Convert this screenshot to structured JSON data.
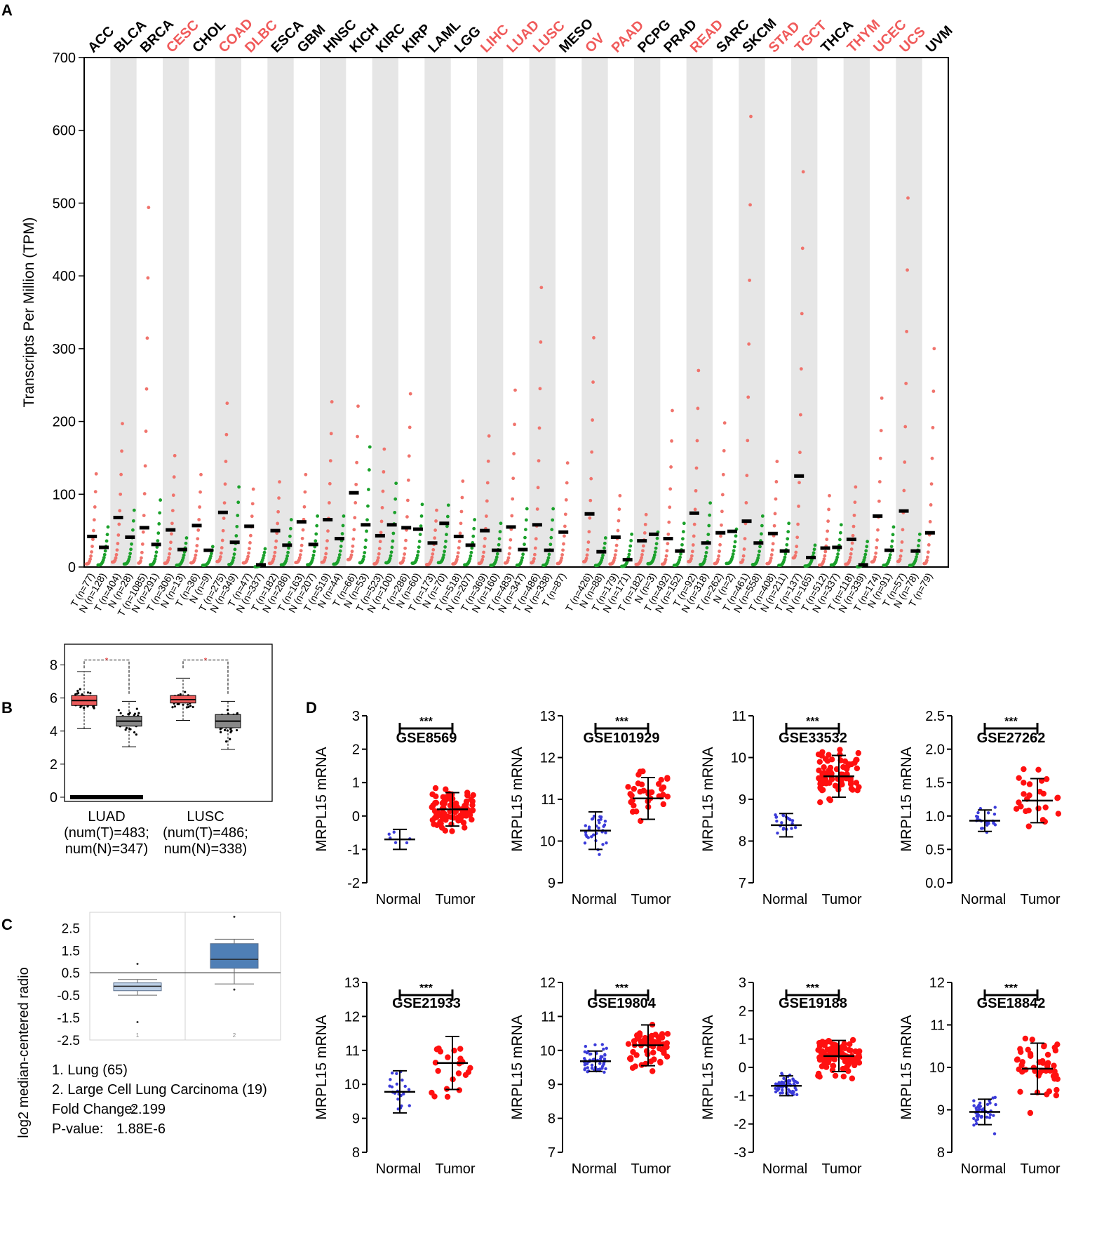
{
  "panel_labels": {
    "a": "A",
    "b": "B",
    "c": "C",
    "d": "D"
  },
  "colors": {
    "tumor": "#F0736C",
    "normal": "#1BA12B",
    "highlight": "#F05A5A",
    "black": "#000000",
    "band": "#E6E6E6",
    "blue_dot": "#3B3BD9",
    "red_dot": "#FF1010",
    "box_light": "#BCCFE6",
    "box_dark": "#4F7FB6"
  },
  "chart_data": [
    {
      "id": "A",
      "type": "scatter",
      "ylabel": "Transcripts Per Million (TPM)",
      "ylim": [
        0,
        700
      ],
      "yticks": [
        0,
        100,
        200,
        300,
        400,
        500,
        600,
        700
      ],
      "cancers": [
        {
          "name": "ACC",
          "highlight": false,
          "tumor": {
            "label": "T (n=77)",
            "median": 42,
            "max": 128
          },
          "normal": {
            "label": "N (n=128)",
            "median": 27,
            "max": 55
          }
        },
        {
          "name": "BLCA",
          "highlight": false,
          "tumor": {
            "label": "T (n=404)",
            "median": 68,
            "max": 197
          },
          "normal": {
            "label": "N (n=28)",
            "median": 41,
            "max": 78
          }
        },
        {
          "name": "BRCA",
          "highlight": false,
          "tumor": {
            "label": "T (n=1085)",
            "median": 54,
            "max": 494
          },
          "normal": {
            "label": "N (n=291)",
            "median": 31,
            "max": 92
          }
        },
        {
          "name": "CESC",
          "highlight": true,
          "tumor": {
            "label": "T (n=306)",
            "median": 51,
            "max": 153
          },
          "normal": {
            "label": "N (n=13)",
            "median": 24,
            "max": 40
          }
        },
        {
          "name": "CHOL",
          "highlight": false,
          "tumor": {
            "label": "T (n=36)",
            "median": 57,
            "max": 127
          },
          "normal": {
            "label": "N (n=9)",
            "median": 23,
            "max": 28
          }
        },
        {
          "name": "COAD",
          "highlight": true,
          "tumor": {
            "label": "T (n=275)",
            "median": 75,
            "max": 225
          },
          "normal": {
            "label": "N (n=349)",
            "median": 34,
            "max": 110
          }
        },
        {
          "name": "DLBC",
          "highlight": true,
          "tumor": {
            "label": "T (n=47)",
            "median": 56,
            "max": 107
          },
          "normal": {
            "label": "N (n=337)",
            "median": 3,
            "max": 25
          }
        },
        {
          "name": "ESCA",
          "highlight": false,
          "tumor": {
            "label": "T (n=182)",
            "median": 50,
            "max": 117
          },
          "normal": {
            "label": "N (n=286)",
            "median": 30,
            "max": 65
          }
        },
        {
          "name": "GBM",
          "highlight": false,
          "tumor": {
            "label": "T (n=163)",
            "median": 62,
            "max": 127
          },
          "normal": {
            "label": "N (n=207)",
            "median": 31,
            "max": 70
          }
        },
        {
          "name": "HNSC",
          "highlight": false,
          "tumor": {
            "label": "T (n=519)",
            "median": 65,
            "max": 227
          },
          "normal": {
            "label": "N (n=44)",
            "median": 39,
            "max": 70
          }
        },
        {
          "name": "KICH",
          "highlight": false,
          "tumor": {
            "label": "T (n=66)",
            "median": 102,
            "max": 221
          },
          "normal": {
            "label": "N (n=53)",
            "median": 58,
            "max": 165
          }
        },
        {
          "name": "KIRC",
          "highlight": false,
          "tumor": {
            "label": "T (n=523)",
            "median": 43,
            "max": 162
          },
          "normal": {
            "label": "N (n=100)",
            "median": 58,
            "max": 115
          }
        },
        {
          "name": "KIRP",
          "highlight": false,
          "tumor": {
            "label": "T (n=286)",
            "median": 54,
            "max": 238
          },
          "normal": {
            "label": "N (n=60)",
            "median": 52,
            "max": 86
          }
        },
        {
          "name": "LAML",
          "highlight": false,
          "tumor": {
            "label": "T (n=173)",
            "median": 33,
            "max": 78
          },
          "normal": {
            "label": "N (n=70)",
            "median": 60,
            "max": 85
          }
        },
        {
          "name": "LGG",
          "highlight": false,
          "tumor": {
            "label": "T (n=518)",
            "median": 42,
            "max": 118
          },
          "normal": {
            "label": "N (n=207)",
            "median": 30,
            "max": 65
          }
        },
        {
          "name": "LIHC",
          "highlight": true,
          "tumor": {
            "label": "T (n=369)",
            "median": 50,
            "max": 180
          },
          "normal": {
            "label": "N (n=160)",
            "median": 23,
            "max": 60
          }
        },
        {
          "name": "LUAD",
          "highlight": true,
          "tumor": {
            "label": "T (n=483)",
            "median": 55,
            "max": 243
          },
          "normal": {
            "label": "N (n=347)",
            "median": 24,
            "max": 80
          }
        },
        {
          "name": "LUSC",
          "highlight": true,
          "tumor": {
            "label": "T (n=486)",
            "median": 58,
            "max": 384
          },
          "normal": {
            "label": "N (n=338)",
            "median": 23,
            "max": 80
          }
        },
        {
          "name": "MESO",
          "highlight": false,
          "tumor": {
            "label": "T (n=87)",
            "median": 48,
            "max": 143
          },
          "normal": null
        },
        {
          "name": "OV",
          "highlight": true,
          "tumor": {
            "label": "T (n=426)",
            "median": 73,
            "max": 315
          },
          "normal": {
            "label": "N (n=88)",
            "median": 21,
            "max": 40
          }
        },
        {
          "name": "PAAD",
          "highlight": true,
          "tumor": {
            "label": "T (n=179)",
            "median": 41,
            "max": 98
          },
          "normal": {
            "label": "N (n=171)",
            "median": 10,
            "max": 45
          }
        },
        {
          "name": "PCPG",
          "highlight": false,
          "tumor": {
            "label": "T (n=182)",
            "median": 36,
            "max": 72
          },
          "normal": {
            "label": "N (n=3)",
            "median": 45,
            "max": 48
          }
        },
        {
          "name": "PRAD",
          "highlight": false,
          "tumor": {
            "label": "T (n=492)",
            "median": 39,
            "max": 215
          },
          "normal": {
            "label": "N (n=152)",
            "median": 22,
            "max": 60
          }
        },
        {
          "name": "READ",
          "highlight": true,
          "tumor": {
            "label": "T (n=92)",
            "median": 74,
            "max": 270
          },
          "normal": {
            "label": "N (n=318)",
            "median": 33,
            "max": 88
          }
        },
        {
          "name": "SARC",
          "highlight": false,
          "tumor": {
            "label": "T (n=262)",
            "median": 47,
            "max": 198
          },
          "normal": {
            "label": "N (n=2)",
            "median": 49,
            "max": 52
          }
        },
        {
          "name": "SKCM",
          "highlight": false,
          "tumor": {
            "label": "T (n=461)",
            "median": 63,
            "max": 619
          },
          "normal": {
            "label": "N (n=558)",
            "median": 33,
            "max": 70
          }
        },
        {
          "name": "STAD",
          "highlight": true,
          "tumor": {
            "label": "T (n=408)",
            "median": 46,
            "max": 145
          },
          "normal": {
            "label": "N (n=211)",
            "median": 22,
            "max": 60
          }
        },
        {
          "name": "TGCT",
          "highlight": true,
          "tumor": {
            "label": "T (n=137)",
            "median": 125,
            "max": 543
          },
          "normal": {
            "label": "N (n=165)",
            "median": 13,
            "max": 30
          }
        },
        {
          "name": "THCA",
          "highlight": false,
          "tumor": {
            "label": "T (n=512)",
            "median": 26,
            "max": 98
          },
          "normal": {
            "label": "N (n=337)",
            "median": 27,
            "max": 58
          }
        },
        {
          "name": "THYM",
          "highlight": true,
          "tumor": {
            "label": "T (n=118)",
            "median": 38,
            "max": 110
          },
          "normal": {
            "label": "N (n=339)",
            "median": 3,
            "max": 35
          }
        },
        {
          "name": "UCEC",
          "highlight": true,
          "tumor": {
            "label": "T (n=174)",
            "median": 70,
            "max": 232
          },
          "normal": {
            "label": "N (n=91)",
            "median": 23,
            "max": 55
          }
        },
        {
          "name": "UCS",
          "highlight": true,
          "tumor": {
            "label": "T (n=57)",
            "median": 77,
            "max": 507
          },
          "normal": {
            "label": "N (n=78)",
            "median": 22,
            "max": 45
          }
        },
        {
          "name": "UVM",
          "highlight": false,
          "tumor": {
            "label": "T (n=79)",
            "median": 47,
            "max": 300
          },
          "normal": null
        }
      ]
    },
    {
      "id": "B",
      "type": "box",
      "ylim": [
        0,
        9
      ],
      "yticks": [
        0,
        2,
        4,
        6,
        8
      ],
      "significance_mark": "*",
      "groups": [
        {
          "name": "LUAD",
          "line1": "(num(T)=483;",
          "line2": "num(N)=347)",
          "tumor": {
            "q1": 5.55,
            "median": 5.85,
            "q3": 6.15,
            "whisker_low": 4.15,
            "whisker_high": 7.6
          },
          "normal": {
            "q1": 4.3,
            "median": 4.6,
            "q3": 4.9,
            "whisker_low": 3.05,
            "whisker_high": 5.8
          }
        },
        {
          "name": "LUSC",
          "line1": "(num(T)=486;",
          "line2": "num(N)=338)",
          "tumor": {
            "q1": 5.7,
            "median": 5.9,
            "q3": 6.15,
            "whisker_low": 4.65,
            "whisker_high": 7.2
          },
          "normal": {
            "q1": 4.2,
            "median": 4.6,
            "q3": 5.0,
            "whisker_low": 2.9,
            "whisker_high": 5.8
          }
        }
      ]
    },
    {
      "id": "C",
      "type": "box",
      "ylabel": "log2 median-centered radio",
      "ylim": [
        -2.5,
        3.2
      ],
      "yticks": [
        "2.5",
        "1.5",
        "0.5",
        "-0.5",
        "-1.5",
        "-2.5"
      ],
      "boxes": [
        {
          "label": "1",
          "q1": -0.3,
          "median": -0.1,
          "q3": 0.05,
          "whisker_low": -0.5,
          "whisker_high": 0.2,
          "outliers": [
            0.9,
            -1.7
          ]
        },
        {
          "label": "2",
          "q1": 0.7,
          "median": 1.1,
          "q3": 1.8,
          "whisker_low": 0.0,
          "whisker_high": 2.0,
          "outliers": [
            3.0,
            -0.25
          ]
        }
      ],
      "legend": [
        "1. Lung (65)",
        "2. Large Cell Lung Carcinoma  (19)"
      ],
      "stats": [
        {
          "label": "Fold Change:",
          "value": "2.199"
        },
        {
          "label": "P-value:",
          "value": "1.88E-6"
        }
      ]
    },
    {
      "id": "D",
      "type": "scatter",
      "ylabel": "MRPL15 mRNA",
      "categories": [
        "Normal",
        "Tumor"
      ],
      "panels": [
        {
          "title": "GSE8569",
          "ylim": [
            -2,
            3
          ],
          "yticks": [
            "-2",
            "-1",
            "0",
            "1",
            "2",
            "3"
          ],
          "sig": "***",
          "normal": {
            "mean": -0.7,
            "sd": 0.3,
            "n": 6
          },
          "tumor": {
            "mean": 0.2,
            "sd": 0.5,
            "n": 90
          }
        },
        {
          "title": "GSE101929",
          "ylim": [
            9,
            13
          ],
          "yticks": [
            "9",
            "10",
            "11",
            "12",
            "13"
          ],
          "sig": "***",
          "normal": {
            "mean": 10.25,
            "sd": 0.45,
            "n": 32
          },
          "tumor": {
            "mean": 11.02,
            "sd": 0.5,
            "n": 34
          }
        },
        {
          "title": "GSE33532",
          "ylim": [
            7,
            11
          ],
          "yticks": [
            "7",
            "8",
            "9",
            "10",
            "11"
          ],
          "sig": "***",
          "normal": {
            "mean": 8.38,
            "sd": 0.28,
            "n": 20
          },
          "tumor": {
            "mean": 9.55,
            "sd": 0.5,
            "n": 80
          }
        },
        {
          "title": "GSE27262",
          "ylim": [
            0,
            2.5
          ],
          "yticks": [
            "0.0",
            "0.5",
            "1.0",
            "1.5",
            "2.0",
            "2.5"
          ],
          "sig": "***",
          "normal": {
            "mean": 0.93,
            "sd": 0.16,
            "n": 25
          },
          "tumor": {
            "mean": 1.23,
            "sd": 0.33,
            "n": 25
          }
        },
        {
          "title": "GSE21933",
          "ylim": [
            8,
            13
          ],
          "yticks": [
            "8",
            "9",
            "10",
            "11",
            "12",
            "13"
          ],
          "sig": "***",
          "normal": {
            "mean": 9.78,
            "sd": 0.62,
            "n": 21
          },
          "tumor": {
            "mean": 10.63,
            "sd": 0.78,
            "n": 21
          }
        },
        {
          "title": "GSE19804",
          "ylim": [
            7,
            12
          ],
          "yticks": [
            "7",
            "8",
            "9",
            "10",
            "11",
            "12"
          ],
          "sig": "***",
          "normal": {
            "mean": 9.68,
            "sd": 0.3,
            "n": 60
          },
          "tumor": {
            "mean": 10.15,
            "sd": 0.6,
            "n": 60
          }
        },
        {
          "title": "GSE19188",
          "ylim": [
            -3,
            3
          ],
          "yticks": [
            "-3",
            "-2",
            "-1",
            "0",
            "1",
            "2",
            "3"
          ],
          "sig": "***",
          "normal": {
            "mean": -0.65,
            "sd": 0.35,
            "n": 65
          },
          "tumor": {
            "mean": 0.4,
            "sd": 0.55,
            "n": 91
          }
        },
        {
          "title": "GSE18842",
          "ylim": [
            8,
            12
          ],
          "yticks": [
            "8",
            "9",
            "10",
            "11",
            "12"
          ],
          "sig": "***",
          "normal": {
            "mean": 8.95,
            "sd": 0.3,
            "n": 45
          },
          "tumor": {
            "mean": 9.97,
            "sd": 0.6,
            "n": 46
          }
        }
      ]
    }
  ]
}
